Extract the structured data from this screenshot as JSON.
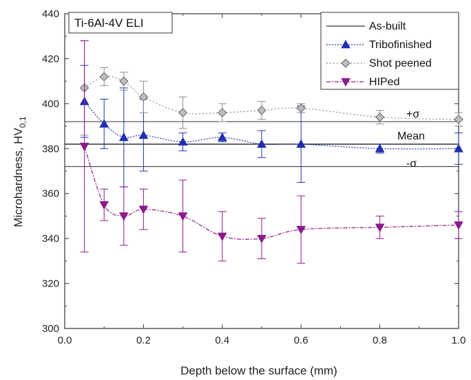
{
  "chart_data": {
    "type": "line",
    "title": "Ti-6Al-4V ELI",
    "xlabel": "Depth below the surface (mm)",
    "ylabel_main": "Microhardness, HV",
    "ylabel_sub": "0,1",
    "xlim": [
      0.0,
      1.0
    ],
    "ylim": [
      300,
      440
    ],
    "xticks": [
      "0.0",
      "0.2",
      "0.4",
      "0.6",
      "0.8",
      "1.0"
    ],
    "yticks": [
      "300",
      "320",
      "340",
      "360",
      "380",
      "400",
      "420",
      "440"
    ],
    "grid": false,
    "legend_position": "top-right",
    "reference_lines": [
      {
        "name": "As-built",
        "label": "Mean",
        "value": 382
      },
      {
        "label": "+σ",
        "value": 392
      },
      {
        "label": "-σ",
        "value": 372
      }
    ],
    "series": [
      {
        "name": "Tribofinished",
        "color": "#1f2fb0",
        "marker": "triangle-up",
        "x": [
          0.05,
          0.1,
          0.15,
          0.2,
          0.3,
          0.4,
          0.5,
          0.6,
          0.8,
          1.0
        ],
        "y": [
          401,
          391,
          385,
          386,
          383,
          385,
          382,
          382,
          380,
          380
        ],
        "err": [
          16,
          11,
          22,
          16,
          4,
          2,
          6,
          17,
          2,
          7
        ]
      },
      {
        "name": "Shot peened",
        "color": "#8a8a8a",
        "marker": "diamond",
        "x": [
          0.05,
          0.1,
          0.15,
          0.2,
          0.3,
          0.4,
          0.5,
          0.6,
          0.8,
          1.0
        ],
        "y": [
          407,
          412,
          410,
          403,
          396,
          396,
          397,
          398,
          394,
          393
        ],
        "err": [
          21,
          4,
          4,
          7,
          7,
          4,
          4,
          2,
          3,
          3
        ]
      },
      {
        "name": "HIPed",
        "color": "#8b1a8b",
        "marker": "triangle-down",
        "x": [
          0.05,
          0.1,
          0.15,
          0.2,
          0.3,
          0.4,
          0.5,
          0.6,
          0.8,
          1.0
        ],
        "y": [
          381,
          355,
          350,
          353,
          350,
          341,
          340,
          344,
          345,
          346
        ],
        "err": [
          47,
          7,
          13,
          9,
          16,
          11,
          9,
          15,
          5,
          6
        ]
      }
    ]
  }
}
